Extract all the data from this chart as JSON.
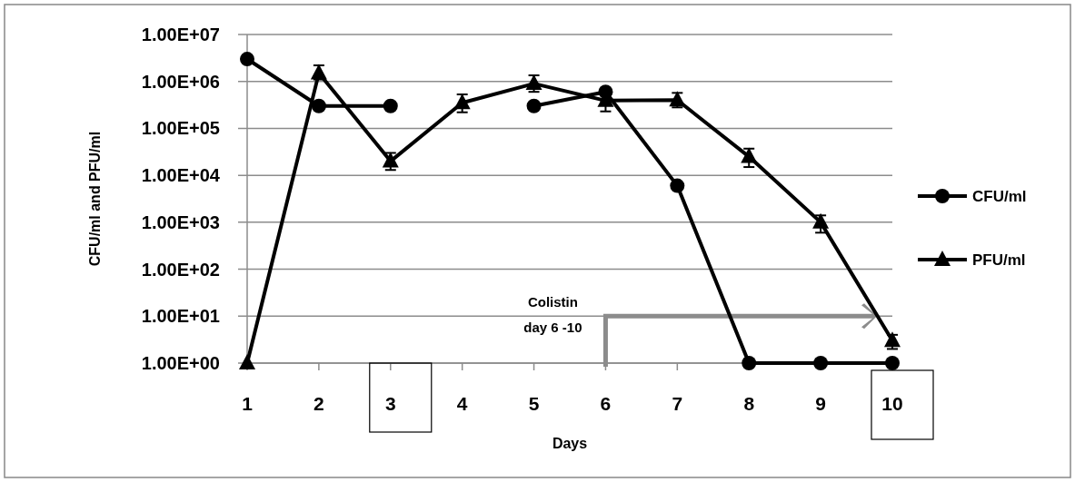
{
  "chart_data": {
    "type": "line",
    "xlabel": "Days",
    "ylabel": "CFU/ml and PFU/ml",
    "categories": [
      "1",
      "2",
      "3",
      "4",
      "5",
      "6",
      "7",
      "8",
      "9",
      "10"
    ],
    "log": "y",
    "ylim": [
      1,
      10000000
    ],
    "yticks": [
      {
        "value": 1,
        "label": "1.00E+00"
      },
      {
        "value": 10,
        "label": "1.00E+01"
      },
      {
        "value": 100,
        "label": "1.00E+02"
      },
      {
        "value": 1000,
        "label": "1.00E+03"
      },
      {
        "value": 10000,
        "label": "1.00E+04"
      },
      {
        "value": 100000,
        "label": "1.00E+05"
      },
      {
        "value": 1000000,
        "label": "1.00E+06"
      },
      {
        "value": 10000000,
        "label": "1.00E+07"
      }
    ],
    "grid": "y",
    "legend": "right",
    "series": [
      {
        "name": "CFU/ml",
        "color": "#000000",
        "marker": "circle",
        "values": [
          3000000,
          300000,
          300000,
          null,
          300000,
          600000,
          6000,
          1,
          1,
          1
        ]
      },
      {
        "name": "PFU/ml",
        "color": "#000000",
        "marker": "triangle",
        "values": [
          1,
          1500000,
          20000,
          350000,
          900000,
          390000,
          400000,
          25000,
          1000,
          3
        ],
        "errors": [
          null,
          [
            1100000,
            2200000
          ],
          [
            13000,
            30000
          ],
          [
            220000,
            530000
          ],
          [
            600000,
            1350000
          ],
          [
            230000,
            390000
          ],
          [
            280000,
            570000
          ],
          [
            15000,
            37000
          ],
          [
            600,
            1400
          ],
          [
            2,
            4
          ]
        ]
      }
    ],
    "annotations": [
      "Colistin\nday 6 -10"
    ]
  }
}
